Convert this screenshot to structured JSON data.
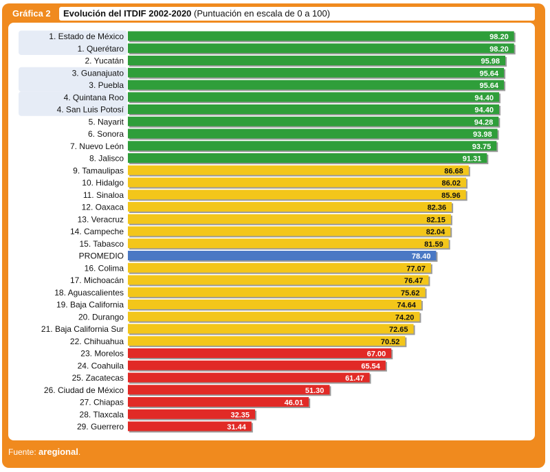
{
  "header": {
    "tag": "Gráfica 2",
    "title_bold": "Evolución del ITDIF 2002-2020",
    "title_rest": "(Puntuación en escala de 0 a 100)"
  },
  "footer": {
    "label": "Fuente:",
    "brand": "aregional",
    "suffix": "."
  },
  "colors": {
    "green": "#2f9e3a",
    "yellow": "#f3c61a",
    "red": "#e12a26",
    "blue": "#4a78c4",
    "frame": "#f08a1e",
    "highlight": "#e6ecf6"
  },
  "chart_data": {
    "type": "bar",
    "orientation": "horizontal",
    "xlim": [
      0,
      100
    ],
    "categories": [
      "1. Estado de México",
      "1. Querétaro",
      "2. Yucatán",
      "3. Guanajuato",
      "3. Puebla",
      "4. Quintana Roo",
      "4. San Luis Potosí",
      "5. Nayarit",
      "6. Sonora",
      "7. Nuevo León",
      "8. Jalisco",
      "9. Tamaulipas",
      "10. Hidalgo",
      "11. Sinaloa",
      "12. Oaxaca",
      "13. Veracruz",
      "14. Campeche",
      "15. Tabasco",
      "PROMEDIO",
      "16. Colima",
      "17. Michoacán",
      "18. Aguascalientes",
      "19. Baja California",
      "20. Durango",
      "21. Baja California Sur",
      "22. Chihuahua",
      "23. Morelos",
      "24. Coahuila",
      "25. Zacatecas",
      "26. Ciudad de México",
      "27. Chiapas",
      "28. Tlaxcala",
      "29. Guerrero"
    ],
    "values": [
      98.2,
      98.2,
      95.98,
      95.64,
      95.64,
      94.4,
      94.4,
      94.28,
      93.98,
      93.75,
      91.31,
      86.68,
      86.02,
      85.96,
      82.36,
      82.15,
      82.04,
      81.59,
      78.4,
      77.07,
      76.47,
      75.62,
      74.64,
      74.2,
      72.65,
      70.52,
      67.0,
      65.54,
      61.47,
      51.3,
      46.01,
      32.35,
      31.44
    ],
    "value_labels": [
      "98.20",
      "98.20",
      "95.98",
      "95.64",
      "95.64",
      "94.40",
      "94.40",
      "94.28",
      "93.98",
      "93.75",
      "91.31",
      "86.68",
      "86.02",
      "85.96",
      "82.36",
      "82.15",
      "82.04",
      "81.59",
      "78.40",
      "77.07",
      "76.47",
      "75.62",
      "74.64",
      "74.20",
      "72.65",
      "70.52",
      "67.00",
      "65.54",
      "61.47",
      "51.30",
      "46.01",
      "32.35",
      "31.44"
    ],
    "groups": [
      "green",
      "green",
      "green",
      "green",
      "green",
      "green",
      "green",
      "green",
      "green",
      "green",
      "green",
      "yellow",
      "yellow",
      "yellow",
      "yellow",
      "yellow",
      "yellow",
      "yellow",
      "blue",
      "yellow",
      "yellow",
      "yellow",
      "yellow",
      "yellow",
      "yellow",
      "yellow",
      "red",
      "red",
      "red",
      "red",
      "red",
      "red",
      "red"
    ],
    "tied_pairs": [
      [
        0,
        1
      ],
      [
        3,
        4
      ],
      [
        5,
        6
      ]
    ]
  }
}
